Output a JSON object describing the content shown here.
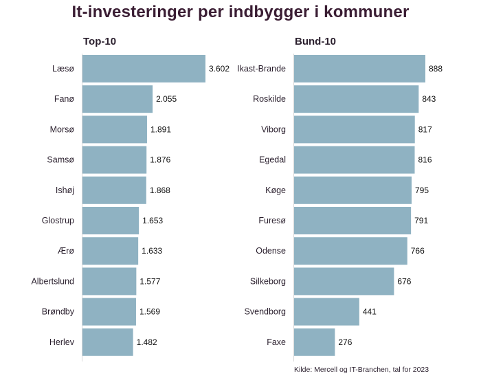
{
  "chart_data": [
    {
      "type": "bar",
      "orientation": "horizontal",
      "title": "Top-10",
      "categories": [
        "Læsø",
        "Fanø",
        "Morsø",
        "Samsø",
        "Ishøj",
        "Glostrup",
        "Ærø",
        "Albertslund",
        "Brøndby",
        "Herlev"
      ],
      "values": [
        3602,
        2055,
        1891,
        1876,
        1868,
        1653,
        1633,
        1577,
        1569,
        1482
      ],
      "value_labels": [
        "3.602",
        "2.055",
        "1.891",
        "1.876",
        "1.868",
        "1.653",
        "1.633",
        "1.577",
        "1.569",
        "1.482"
      ],
      "xlim": [
        0,
        3602
      ],
      "grid": false,
      "color": "#8fb2c2"
    },
    {
      "type": "bar",
      "orientation": "horizontal",
      "title": "Bund-10",
      "categories": [
        "Ikast-Brande",
        "Roskilde",
        "Viborg",
        "Egedal",
        "Køge",
        "Furesø",
        "Odense",
        "Silkeborg",
        "Svendborg",
        "Faxe"
      ],
      "values": [
        888,
        843,
        817,
        816,
        795,
        791,
        766,
        676,
        441,
        276
      ],
      "value_labels": [
        "888",
        "843",
        "817",
        "816",
        "795",
        "791",
        "766",
        "676",
        "441",
        "276"
      ],
      "xlim": [
        0,
        888
      ],
      "grid": false,
      "color": "#8fb2c2"
    }
  ],
  "title": "It-investeringer per indbygger i kommuner",
  "source": "Kilde: Mercell og IT-Branchen, tal for 2023",
  "colors": {
    "bar": "#8fb2c2",
    "title": "#3a1d33",
    "text": "#2a1f2d"
  }
}
